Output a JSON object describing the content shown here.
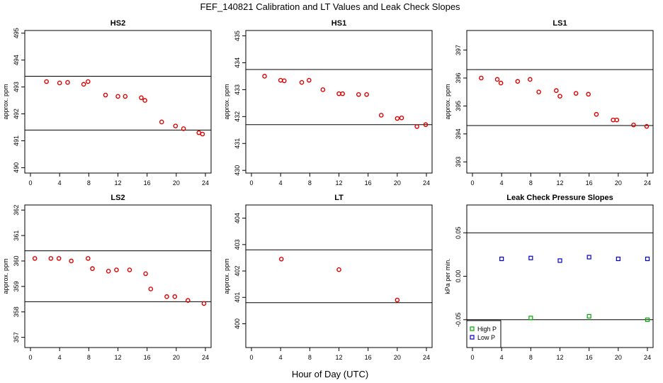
{
  "title": "FEF_140821  Calibration and LT Values and Leak Check Slopes",
  "xlabel": "Hour of Day (UTC)",
  "colors": {
    "cal_points": "#dd0000",
    "high_p": "#00aa00",
    "low_p": "#0000cc",
    "ref_lines": "#000000"
  },
  "chart_data": [
    {
      "type": "scatter",
      "title": "HS2",
      "ylabel": "approx. ppm",
      "xlim": [
        0,
        24
      ],
      "ylim": [
        489.8,
        495.1
      ],
      "xticks": [
        "0",
        "4",
        "8",
        "12",
        "16",
        "20",
        "24"
      ],
      "yticks": [
        "490",
        "491",
        "492",
        "493",
        "494",
        "495"
      ],
      "ref_lines": [
        493.4,
        491.4
      ],
      "points": [
        [
          2.2,
          493.2
        ],
        [
          4.0,
          493.15
        ],
        [
          5.1,
          493.17
        ],
        [
          7.3,
          493.1
        ],
        [
          7.9,
          493.2
        ],
        [
          10.3,
          492.7
        ],
        [
          12.0,
          492.65
        ],
        [
          13.0,
          492.65
        ],
        [
          15.2,
          492.6
        ],
        [
          15.7,
          492.5
        ],
        [
          18.0,
          491.7
        ],
        [
          19.9,
          491.55
        ],
        [
          21.0,
          491.45
        ],
        [
          23.1,
          491.3
        ],
        [
          23.6,
          491.25
        ]
      ]
    },
    {
      "type": "scatter",
      "title": "HS1",
      "ylabel": "approx. ppm",
      "xlim": [
        0,
        24
      ],
      "ylim": [
        429.9,
        435.2
      ],
      "xticks": [
        "0",
        "4",
        "8",
        "12",
        "16",
        "20",
        "24"
      ],
      "yticks": [
        "430",
        "431",
        "432",
        "433",
        "434",
        "435"
      ],
      "ref_lines": [
        433.75,
        431.7
      ],
      "points": [
        [
          1.8,
          433.5
        ],
        [
          4.0,
          433.35
        ],
        [
          4.5,
          433.33
        ],
        [
          6.9,
          433.27
        ],
        [
          7.9,
          433.35
        ],
        [
          9.8,
          433.0
        ],
        [
          12.0,
          432.85
        ],
        [
          12.5,
          432.85
        ],
        [
          14.7,
          432.82
        ],
        [
          15.8,
          432.82
        ],
        [
          17.8,
          432.05
        ],
        [
          20.0,
          431.93
        ],
        [
          20.6,
          431.95
        ],
        [
          22.7,
          431.63
        ],
        [
          23.9,
          431.7
        ]
      ]
    },
    {
      "type": "scatter",
      "title": "LS1",
      "ylabel": "approx. ppm",
      "xlim": [
        0,
        24
      ],
      "ylim": [
        392.6,
        397.7
      ],
      "xticks": [
        "0",
        "4",
        "8",
        "12",
        "16",
        "20",
        "24"
      ],
      "yticks": [
        "393",
        "394",
        "395",
        "396",
        "397"
      ],
      "ref_lines": [
        396.3,
        394.3
      ],
      "points": [
        [
          1.2,
          396.0
        ],
        [
          3.4,
          395.95
        ],
        [
          3.9,
          395.82
        ],
        [
          6.2,
          395.88
        ],
        [
          7.9,
          395.95
        ],
        [
          9.1,
          395.5
        ],
        [
          11.5,
          395.55
        ],
        [
          12.0,
          395.35
        ],
        [
          14.2,
          395.45
        ],
        [
          15.9,
          395.42
        ],
        [
          17.0,
          394.7
        ],
        [
          19.3,
          394.5
        ],
        [
          19.8,
          394.5
        ],
        [
          22.1,
          394.32
        ],
        [
          23.9,
          394.27
        ]
      ]
    },
    {
      "type": "scatter",
      "title": "LS2",
      "ylabel": "approx. ppm",
      "xlim": [
        0,
        24
      ],
      "ylim": [
        356.6,
        362.2
      ],
      "xticks": [
        "0",
        "4",
        "8",
        "12",
        "16",
        "20",
        "24"
      ],
      "yticks": [
        "357",
        "358",
        "359",
        "360",
        "361",
        "362"
      ],
      "ref_lines": [
        360.4,
        358.4
      ],
      "points": [
        [
          0.6,
          360.1
        ],
        [
          2.8,
          360.1
        ],
        [
          3.9,
          360.1
        ],
        [
          5.6,
          360.0
        ],
        [
          7.9,
          360.1
        ],
        [
          8.5,
          359.7
        ],
        [
          10.7,
          359.6
        ],
        [
          11.8,
          359.65
        ],
        [
          13.6,
          359.65
        ],
        [
          15.8,
          359.5
        ],
        [
          16.5,
          358.9
        ],
        [
          18.7,
          358.6
        ],
        [
          19.8,
          358.6
        ],
        [
          21.6,
          358.45
        ],
        [
          23.8,
          358.33
        ]
      ]
    },
    {
      "type": "scatter",
      "title": "LT",
      "ylabel": "approx. ppm",
      "xlim": [
        0,
        24
      ],
      "ylim": [
        399.1,
        404.5
      ],
      "xticks": [
        "0",
        "4",
        "8",
        "12",
        "16",
        "20",
        "24"
      ],
      "yticks": [
        "400",
        "401",
        "402",
        "403",
        "404"
      ],
      "ref_lines": [
        402.8,
        400.8
      ],
      "points": [
        [
          4.1,
          402.45
        ],
        [
          12.0,
          402.05
        ],
        [
          20.0,
          400.9
        ]
      ]
    },
    {
      "type": "scatter",
      "title": "Leak Check Pressure Slopes",
      "ylabel": "kPa per min.",
      "xlim": [
        0,
        24
      ],
      "ylim": [
        -0.082,
        0.082
      ],
      "xticks": [
        "0",
        "4",
        "8",
        "12",
        "16",
        "20",
        "24"
      ],
      "yticks": [
        "-0.05",
        "0.00",
        "0.05"
      ],
      "ref_lines": [
        0.05,
        -0.05
      ],
      "series": [
        {
          "name": "High P",
          "color": "#00aa00",
          "points": [
            [
              8.0,
              -0.048
            ],
            [
              16.0,
              -0.046
            ],
            [
              24.0,
              -0.05
            ]
          ]
        },
        {
          "name": "Low P",
          "color": "#0000cc",
          "points": [
            [
              4.0,
              0.02
            ],
            [
              8.0,
              0.021
            ],
            [
              12.0,
              0.018
            ],
            [
              16.0,
              0.022
            ],
            [
              20.0,
              0.02
            ],
            [
              24.0,
              0.02
            ]
          ]
        }
      ],
      "legend": "bottom-left"
    }
  ]
}
